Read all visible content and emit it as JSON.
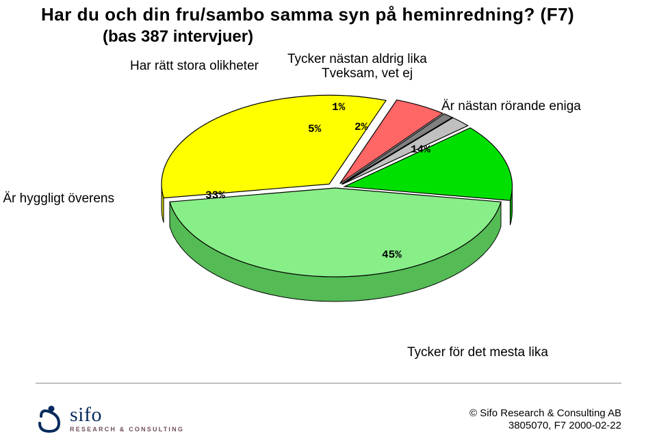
{
  "title": "Har du och din fru/sambo samma syn på heminredning?   (F7)",
  "subtitle": "(bas 387 intervjuer)",
  "chart": {
    "type": "pie-3d-exploded",
    "background_color": "#ffffff",
    "label_fontsize": 19,
    "pct_font": "Courier New",
    "pct_fontsize": 16,
    "pct_weight": "bold",
    "slices": [
      {
        "key": "hyggligt",
        "label": "Är hyggligt överens",
        "value": 33,
        "pct": "33%",
        "color": "#ffff00",
        "side_color": "#cccc00",
        "exploded": true
      },
      {
        "key": "olikheter",
        "label": "Har rätt stora olikheter",
        "value": 5,
        "pct": "5%",
        "color": "#ff6666",
        "side_color": "#994040",
        "exploded": true
      },
      {
        "key": "aldrig",
        "label": "Tycker nästan aldrig lika",
        "value": 1,
        "pct": "1%",
        "color": "#808080",
        "side_color": "#606060",
        "exploded": true
      },
      {
        "key": "tveksam",
        "label": "Tveksam, vet ej",
        "value": 2,
        "pct": "2%",
        "color": "#c0c0c0",
        "side_color": "#808080",
        "exploded": true
      },
      {
        "key": "eniga",
        "label": "Är nästan rörande eniga",
        "value": 14,
        "pct": "14%",
        "color": "#00e000",
        "side_color": "#00a000",
        "exploded": true
      },
      {
        "key": "mesta",
        "label": "Tycker för det mesta lika",
        "value": 45,
        "pct": "45%",
        "color": "#88ee88",
        "side_color": "#55bb55",
        "exploded": false
      }
    ]
  },
  "footer": {
    "logo_name": "sifo",
    "logo_sub": "RESEARCH & CONSULTING",
    "copyright_line1": "© Sifo Research & Consulting AB",
    "copyright_line2": "3805070, F7   2000-02-22"
  }
}
